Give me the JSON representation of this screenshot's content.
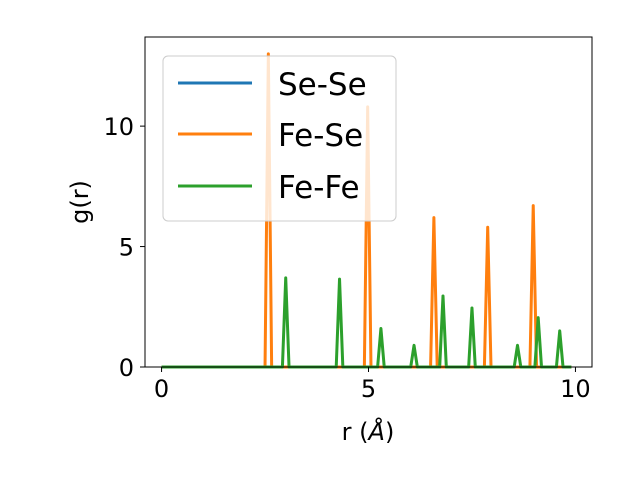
{
  "chart_data": {
    "type": "line",
    "title": "",
    "xlabel": "r (",
    "xlabel_unit": "Å",
    "xlabel_close": ")",
    "ylabel": "g(r)",
    "xlim": [
      -0.4,
      10.4
    ],
    "ylim": [
      0,
      13.7
    ],
    "xticks": [
      0,
      5,
      10
    ],
    "yticks": [
      0,
      5,
      10
    ],
    "xtick_labels": [
      "0",
      "5",
      "10"
    ],
    "ytick_labels": [
      "0",
      "5",
      "10"
    ],
    "grid": false,
    "legend_position": "top-left",
    "series": [
      {
        "name": "Se-Se",
        "color": "#1f77b4",
        "points": [
          [
            0,
            0
          ],
          [
            9.9,
            0
          ]
        ]
      },
      {
        "name": "Fe-Se",
        "color": "#ff7f0e",
        "points": [
          [
            0,
            0
          ],
          [
            2.5,
            0
          ],
          [
            2.58,
            13.0
          ],
          [
            2.66,
            0
          ],
          [
            4.9,
            0
          ],
          [
            4.98,
            10.8
          ],
          [
            5.06,
            0
          ],
          [
            6.5,
            0
          ],
          [
            6.58,
            6.2
          ],
          [
            6.66,
            0
          ],
          [
            7.8,
            0
          ],
          [
            7.88,
            5.8
          ],
          [
            7.96,
            0
          ],
          [
            8.9,
            0
          ],
          [
            8.98,
            6.7
          ],
          [
            9.06,
            0
          ],
          [
            9.9,
            0
          ]
        ]
      },
      {
        "name": "Fe-Fe",
        "color": "#2ca02c",
        "points": [
          [
            0,
            0
          ],
          [
            2.92,
            0
          ],
          [
            3.0,
            3.7
          ],
          [
            3.08,
            0
          ],
          [
            4.22,
            0
          ],
          [
            4.3,
            3.65
          ],
          [
            4.38,
            0
          ],
          [
            5.22,
            0
          ],
          [
            5.3,
            1.6
          ],
          [
            5.38,
            0
          ],
          [
            6.02,
            0
          ],
          [
            6.1,
            0.9
          ],
          [
            6.18,
            0
          ],
          [
            6.72,
            0
          ],
          [
            6.8,
            2.95
          ],
          [
            6.88,
            0
          ],
          [
            7.42,
            0
          ],
          [
            7.5,
            2.45
          ],
          [
            7.58,
            0
          ],
          [
            8.52,
            0
          ],
          [
            8.6,
            0.9
          ],
          [
            8.68,
            0
          ],
          [
            9.02,
            0
          ],
          [
            9.1,
            2.05
          ],
          [
            9.18,
            0
          ],
          [
            9.54,
            0
          ],
          [
            9.62,
            1.5
          ],
          [
            9.7,
            0
          ],
          [
            9.9,
            0
          ]
        ]
      }
    ]
  }
}
